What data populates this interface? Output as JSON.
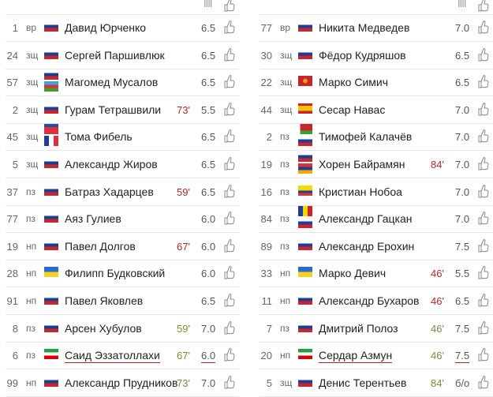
{
  "header": {
    "rating_icon": "bars-icon",
    "rating_symbol": "IIII",
    "like_icon": "thumbs-up-icon"
  },
  "colors": {
    "sub_off": "#b0282a",
    "sub_on": "#7d8a3c",
    "underline": "#b22222",
    "divider": "#e6e6e6"
  },
  "teams": [
    {
      "players": [
        {
          "number": "1",
          "position": "вр",
          "flags": [
            "ru"
          ],
          "name": "Давид Юрченко",
          "minute": "",
          "minute_type": "",
          "rating": "6.5"
        },
        {
          "number": "24",
          "position": "зщ",
          "flags": [
            "ru"
          ],
          "name": "Сергей Паршивлюк",
          "minute": "",
          "minute_type": "",
          "rating": "6.5"
        },
        {
          "number": "57",
          "position": "зщ",
          "flags": [
            "ru",
            "az"
          ],
          "name": "Магомед Мусалов",
          "minute": "",
          "minute_type": "",
          "rating": "6.5"
        },
        {
          "number": "2",
          "position": "зщ",
          "flags": [
            "ru"
          ],
          "name": "Гурам Тетрашвили",
          "minute": "73'",
          "minute_type": "off",
          "rating": "5.5"
        },
        {
          "number": "45",
          "position": "зщ",
          "flags": [
            "gf",
            "fr"
          ],
          "name": "Тома Фибель",
          "minute": "",
          "minute_type": "",
          "rating": "6.5"
        },
        {
          "number": "5",
          "position": "зщ",
          "flags": [
            "ru"
          ],
          "name": "Александр Жиров",
          "minute": "",
          "minute_type": "",
          "rating": "6.5"
        },
        {
          "number": "37",
          "position": "пз",
          "flags": [
            "ru"
          ],
          "name": "Батраз Хадарцев",
          "minute": "59'",
          "minute_type": "off",
          "rating": "6.5"
        },
        {
          "number": "77",
          "position": "пз",
          "flags": [
            "ru"
          ],
          "name": "Аяз Гулиев",
          "minute": "",
          "minute_type": "",
          "rating": "6.0"
        },
        {
          "number": "19",
          "position": "нп",
          "flags": [
            "ru"
          ],
          "name": "Павел Долгов",
          "minute": "67'",
          "minute_type": "off",
          "rating": "6.0"
        },
        {
          "number": "28",
          "position": "нп",
          "flags": [
            "ua"
          ],
          "name": "Филипп Будковский",
          "minute": "",
          "minute_type": "",
          "rating": "6.0"
        },
        {
          "number": "91",
          "position": "нп",
          "flags": [
            "ru"
          ],
          "name": "Павел Яковлев",
          "minute": "",
          "minute_type": "",
          "rating": "6.5"
        },
        {
          "number": "8",
          "position": "пз",
          "flags": [
            "ru"
          ],
          "name": "Арсен Хубулов",
          "minute": "59'",
          "minute_type": "in",
          "rating": "7.0"
        },
        {
          "number": "6",
          "position": "пз",
          "flags": [
            "ir"
          ],
          "name": "Саид Эззатоллахи",
          "minute": "67'",
          "minute_type": "in",
          "rating": "6.0",
          "underlined": true
        },
        {
          "number": "99",
          "position": "нп",
          "flags": [
            "ru"
          ],
          "name": "Александр Прудников",
          "minute": "73'",
          "minute_type": "in",
          "rating": "7.0"
        }
      ]
    },
    {
      "players": [
        {
          "number": "77",
          "position": "вр",
          "flags": [
            "ru"
          ],
          "name": "Никита Медведев",
          "minute": "",
          "minute_type": "",
          "rating": "7.0"
        },
        {
          "number": "30",
          "position": "зщ",
          "flags": [
            "ru"
          ],
          "name": "Фёдор Кудряшов",
          "minute": "",
          "minute_type": "",
          "rating": "6.5"
        },
        {
          "number": "22",
          "position": "зщ",
          "flags": [
            "me"
          ],
          "name": "Марко Симич",
          "minute": "",
          "minute_type": "",
          "rating": "6.5"
        },
        {
          "number": "44",
          "position": "зщ",
          "flags": [
            "es"
          ],
          "name": "Сесар Навас",
          "minute": "",
          "minute_type": "",
          "rating": "7.0"
        },
        {
          "number": "2",
          "position": "пз",
          "flags": [
            "by",
            "ru"
          ],
          "name": "Тимофей Калачёв",
          "minute": "",
          "minute_type": "",
          "rating": "7.0"
        },
        {
          "number": "19",
          "position": "пз",
          "flags": [
            "ru",
            "am"
          ],
          "name": "Хорен Байрамян",
          "minute": "84'",
          "minute_type": "off",
          "rating": "7.0"
        },
        {
          "number": "16",
          "position": "пз",
          "flags": [
            "ec"
          ],
          "name": "Кристиан Нобоа",
          "minute": "",
          "minute_type": "",
          "rating": "7.0"
        },
        {
          "number": "84",
          "position": "пз",
          "flags": [
            "md",
            "ru"
          ],
          "name": "Александр Гацкан",
          "minute": "",
          "minute_type": "",
          "rating": "7.0"
        },
        {
          "number": "89",
          "position": "пз",
          "flags": [
            "ru"
          ],
          "name": "Александр Ерохин",
          "minute": "",
          "minute_type": "",
          "rating": "7.5"
        },
        {
          "number": "33",
          "position": "нп",
          "flags": [
            "ua"
          ],
          "name": "Марко Девич",
          "minute": "46'",
          "minute_type": "off",
          "rating": "5.5"
        },
        {
          "number": "11",
          "position": "нп",
          "flags": [
            "ru"
          ],
          "name": "Александр Бухаров",
          "minute": "46'",
          "minute_type": "off",
          "rating": "6.5"
        },
        {
          "number": "7",
          "position": "пз",
          "flags": [
            "ru"
          ],
          "name": "Дмитрий Полоз",
          "minute": "46'",
          "minute_type": "in",
          "rating": "7.5"
        },
        {
          "number": "20",
          "position": "нп",
          "flags": [
            "ir"
          ],
          "name": "Сердар Азмун",
          "minute": "46'",
          "minute_type": "in",
          "rating": "7.5",
          "underlined": true
        },
        {
          "number": "5",
          "position": "зщ",
          "flags": [
            "ru"
          ],
          "name": "Денис Терентьев",
          "minute": "84'",
          "minute_type": "in",
          "rating": "б/о"
        }
      ]
    }
  ]
}
